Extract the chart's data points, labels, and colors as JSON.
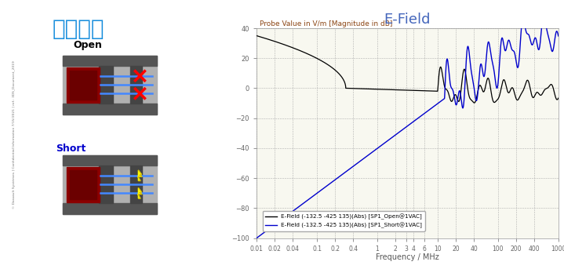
{
  "title": "E-Field",
  "subtitle": "Probe Value in V/m [Magnitude in dB]",
  "xlabel": "Frequency / MHz",
  "ylim": [
    -100,
    40
  ],
  "yticks": [
    -100,
    -80,
    -60,
    -40,
    -20,
    0,
    20,
    40
  ],
  "xtick_labels": [
    "0.01",
    "0.02",
    "0.04",
    "0.1",
    "0.2",
    "0.4",
    "1",
    "2",
    "3",
    "4",
    "6",
    "10",
    "20",
    "40",
    "100",
    "200",
    "400",
    "1000"
  ],
  "xtick_values": [
    0.01,
    0.02,
    0.04,
    0.1,
    0.2,
    0.4,
    1,
    2,
    3,
    4,
    6,
    10,
    20,
    40,
    100,
    200,
    400,
    1000
  ],
  "legend_labels": [
    "E-Field (-132.5 -425 135)(Abs) [SP1_Open@1VAC]",
    "E-Field (-132.5 -425 135)(Abs) [SP1_Short@1VAC]"
  ],
  "line_colors": [
    "black",
    "#0000cc"
  ],
  "bg_color": "#f0f0e8",
  "plot_bg": "#f8f8f0",
  "title_color": "#4466bb",
  "subtitle_color": "#8B4513",
  "grid_color": "#999999",
  "main_title": "辐射电场",
  "open_label": "Open",
  "short_label": "Short",
  "white": "#ffffff"
}
